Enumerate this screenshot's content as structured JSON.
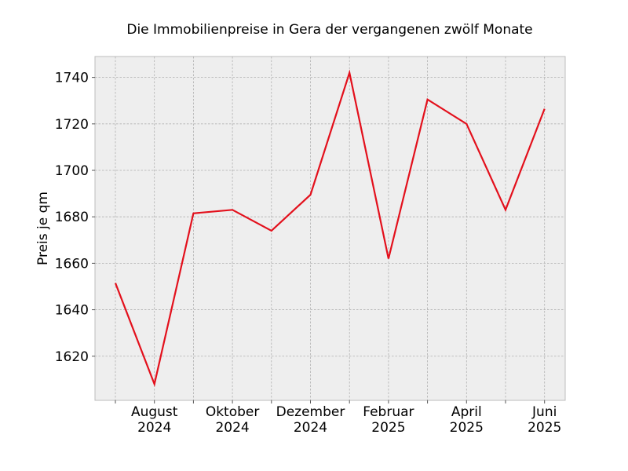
{
  "chart_data": {
    "type": "line",
    "title": "Die Immobilienpreise in Gera der vergangenen zwölf Monate",
    "xlabel": "",
    "ylabel": "Preis je qm",
    "x": [
      "2024-07",
      "2024-08",
      "2024-09",
      "2024-10",
      "2024-11",
      "2024-12",
      "2025-01",
      "2025-02",
      "2025-03",
      "2025-04",
      "2025-05",
      "2025-06"
    ],
    "x_tick_labels": [
      {
        "x": "2024-08",
        "line1": "August",
        "line2": "2024"
      },
      {
        "x": "2024-10",
        "line1": "Oktober",
        "line2": "2024"
      },
      {
        "x": "2024-12",
        "line1": "Dezember",
        "line2": "2024"
      },
      {
        "x": "2025-02",
        "line1": "Februar",
        "line2": "2025"
      },
      {
        "x": "2025-04",
        "line1": "April",
        "line2": "2025"
      },
      {
        "x": "2025-06",
        "line1": "Juni",
        "line2": "2025"
      }
    ],
    "y_ticks": [
      1620,
      1640,
      1660,
      1680,
      1700,
      1720,
      1740
    ],
    "ylim": [
      1601,
      1749
    ],
    "grid": true,
    "series": [
      {
        "values": [
          1651.5,
          1608,
          1681.5,
          1683,
          1674,
          1689.5,
          1742,
          1662,
          1730.5,
          1720,
          1683,
          1726.5
        ],
        "color": "#e3101c"
      }
    ],
    "background_color": "#eeeeee"
  }
}
